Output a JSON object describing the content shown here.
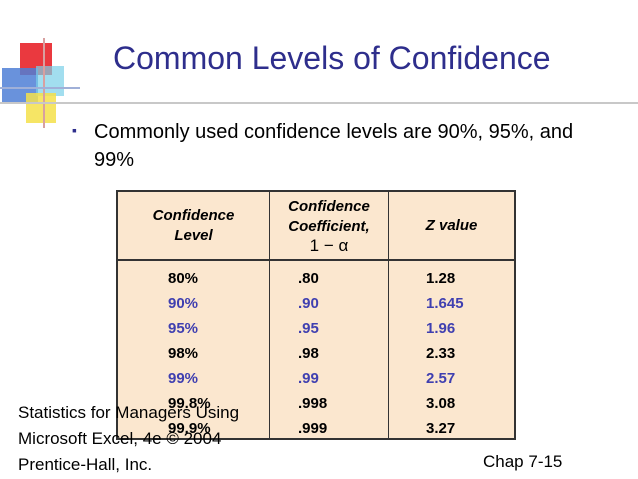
{
  "title": "Common Levels of Confidence",
  "bullet": "Commonly used confidence levels are 90%, 95%, and 99%",
  "table": {
    "headers": {
      "level": [
        "Confidence",
        "Level"
      ],
      "coefficient": [
        "Confidence",
        "Coefficient,",
        "1 − α"
      ],
      "z": [
        "Z value"
      ]
    },
    "rows": [
      {
        "level": "80%",
        "coef": ".80",
        "z": "1.28",
        "highlight": false
      },
      {
        "level": "90%",
        "coef": ".90",
        "z": "1.645",
        "highlight": true
      },
      {
        "level": "95%",
        "coef": ".95",
        "z": "1.96",
        "highlight": true
      },
      {
        "level": "98%",
        "coef": ".98",
        "z": "2.33",
        "highlight": false
      },
      {
        "level": "99%",
        "coef": ".99",
        "z": "2.57",
        "highlight": true
      },
      {
        "level": "99.8%",
        "coef": ".998",
        "z": "3.08",
        "highlight": false
      },
      {
        "level": "99.9%",
        "coef": ".999",
        "z": "3.27",
        "highlight": false
      }
    ]
  },
  "footer": {
    "left_lines": [
      "Statistics for Managers Using",
      "Microsoft Excel, 4e © 2004",
      "Prentice-Hall, Inc."
    ],
    "right": "Chap 7-15"
  },
  "colors": {
    "title": "#2e2e8c",
    "highlight": "#3f3fb0",
    "table_bg": "#fbe7cf"
  }
}
